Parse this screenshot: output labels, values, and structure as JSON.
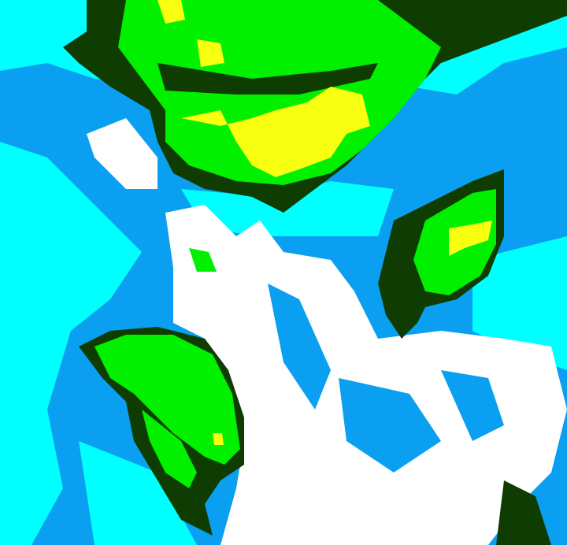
{
  "map": {
    "colors": {
      "blue": "#0a9ff0",
      "cyan": "#00ffff",
      "white": "#ffffff",
      "dark_green": "#0f3c00",
      "green": "#00f000",
      "yellow": "#f8ff10"
    }
  }
}
